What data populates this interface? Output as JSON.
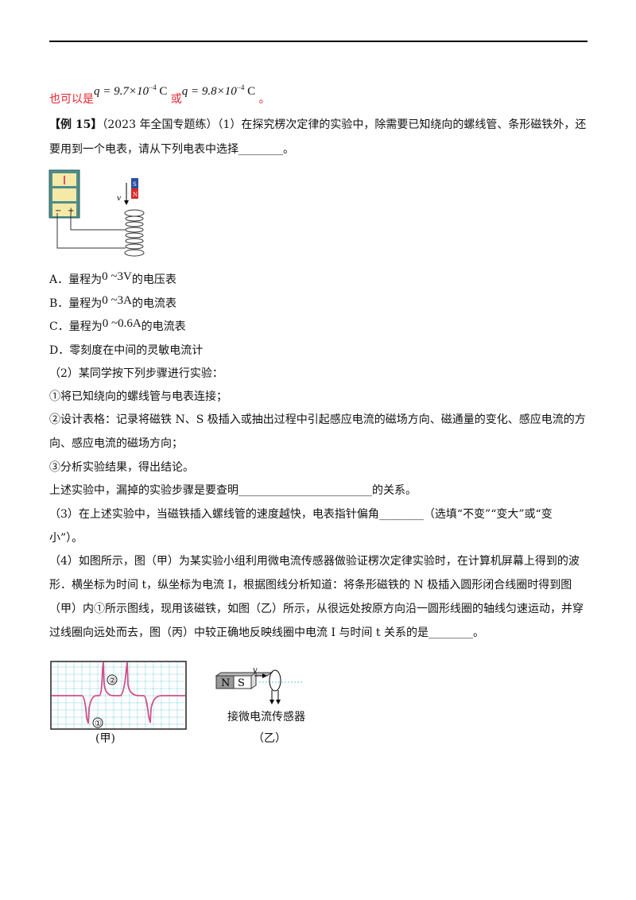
{
  "red_line": {
    "prefix": "也可以是",
    "q1": "q = 9.7×10",
    "exp1": "−4",
    "unit1": " C",
    "or": "或",
    "q2": "q = 9.8×10",
    "exp2": "−4",
    "unit2": " C",
    "end": "。"
  },
  "example": {
    "tag": "【例 15】",
    "line1": "（2023 年全国专题练）（1）在探究楞次定律的实验中，除需要已知绕向的螺线管、条形磁铁外，还",
    "line2": "要用到一个电表，请从下列电表中选择________。"
  },
  "figure1": {
    "magnet_s": "S",
    "magnet_n": "N",
    "velocity": "v",
    "minus": "−",
    "plus": "+"
  },
  "options": [
    {
      "label": "A．量程为",
      "range": "0 ~3V",
      "suffix": "的电压表"
    },
    {
      "label": "B．量程为",
      "range": "0 ~3A",
      "suffix": "的电流表"
    },
    {
      "label": "C．量程为",
      "range": "0 ~0.6A",
      "suffix": "的电流表"
    },
    {
      "label": "D．零刻度在中间的灵敏电流计"
    }
  ],
  "part2": {
    "intro": "（2）某同学按下列步骤进行实验：",
    "step1": "①将已知绕向的螺线管与电表连接；",
    "step2a": "②设计表格：记录将磁铁 N、S 极插入或抽出过程中引起感应电流的磁场方向、磁通量的变化、感应电流的方",
    "step2b": "向、感应电流的磁场方向；",
    "step3": "③分析实验结果，得出结论。",
    "question": "上述实验中，漏掉的实验步骤是要查明________________________的关系。"
  },
  "part3": {
    "line1": "（3）在上述实验中，当磁铁插入螺线管的速度越快，电表指针偏角________（选填“不变”“变大”或“变",
    "line2": "小”）。"
  },
  "part4": {
    "line1": "（4）如图所示，图（甲）为某实验小组利用微电流传感器做验证楞次定律实验时，在计算机屏幕上得到的波",
    "line2": "形．横坐标为时间 t，纵坐标为电流 I，根据图线分析知道：将条形磁铁的 N 极插入圆形闭合线圈时得到图",
    "line3": "（甲）内①所示图线，现用该磁铁，如图（乙）所示，从很远处按原方向沿一圆形线圈的轴线匀速运动，并穿",
    "line4": "过线圈向远处而去，图（丙）中较正确地反映线圈中电流 I 与时间 t 关系的是________。"
  },
  "figure_jia": {
    "label1": "①",
    "label2": "②",
    "caption": "(甲)"
  },
  "figure_yi": {
    "n": "N",
    "s": "S",
    "velocity": "v",
    "sensor": "接微电流传感器",
    "caption": "（乙）"
  },
  "colors": {
    "answer_red": "#e8242b",
    "waveform": "#d0508a",
    "grid": "#5fc8d8"
  }
}
